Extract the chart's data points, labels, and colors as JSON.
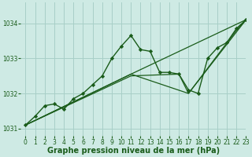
{
  "title": "Graphe pression niveau de la mer (hPa)",
  "background_color": "#ceeae4",
  "grid_color": "#a8cfc8",
  "line_color": "#1a5c1a",
  "marker_color": "#1a5c1a",
  "xlim": [
    -0.5,
    23
  ],
  "ylim": [
    1030.8,
    1034.6
  ],
  "yticks": [
    1031,
    1032,
    1033,
    1034
  ],
  "xticks": [
    0,
    1,
    2,
    3,
    4,
    5,
    6,
    7,
    8,
    9,
    10,
    11,
    12,
    13,
    14,
    15,
    16,
    17,
    18,
    19,
    20,
    21,
    22,
    23
  ],
  "series": [
    {
      "x": [
        0,
        1,
        2,
        3,
        4,
        5,
        6,
        7,
        8,
        9,
        10,
        11,
        12,
        13,
        14,
        15,
        16,
        17,
        18,
        19,
        20,
        21,
        22,
        23
      ],
      "y": [
        1031.1,
        1031.35,
        1031.65,
        1031.7,
        1031.55,
        1031.85,
        1032.0,
        1032.25,
        1032.5,
        1033.0,
        1033.35,
        1033.65,
        1033.25,
        1033.2,
        1032.6,
        1032.6,
        1032.55,
        1032.1,
        1032.0,
        1033.0,
        1033.3,
        1033.45,
        1033.85,
        1034.1
      ],
      "marker": true,
      "lw": 1.0
    },
    {
      "x": [
        0,
        11,
        23
      ],
      "y": [
        1031.1,
        1032.55,
        1034.1
      ],
      "marker": false,
      "lw": 0.9
    },
    {
      "x": [
        0,
        11,
        17,
        23
      ],
      "y": [
        1031.1,
        1032.55,
        1032.0,
        1034.1
      ],
      "marker": false,
      "lw": 0.9
    },
    {
      "x": [
        0,
        11,
        16,
        17,
        22,
        23
      ],
      "y": [
        1031.1,
        1032.5,
        1032.55,
        1032.0,
        1033.8,
        1034.1
      ],
      "marker": false,
      "lw": 0.9
    }
  ],
  "label_fontsize": 7,
  "tick_fontsize": 5.5
}
